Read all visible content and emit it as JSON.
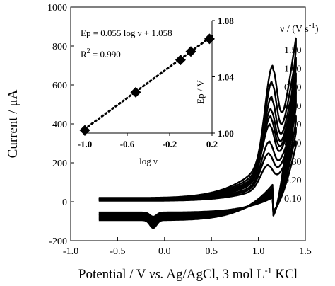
{
  "chart_data": [
    {
      "type": "line",
      "xlabel_parts": [
        "Potential / V ",
        "vs.",
        " Ag/AgCl, 3 mol L",
        "-1",
        " KCl"
      ],
      "ylabel": "Current / μA",
      "xlim": [
        -1.0,
        1.5
      ],
      "ylim": [
        -200,
        1000
      ],
      "xticks": [
        -1.0,
        -0.5,
        0.0,
        0.5,
        1.0,
        1.5
      ],
      "xtick_labels": [
        "-1.0",
        "-0.5",
        "0.0",
        "0.5",
        "1.0",
        "1.5"
      ],
      "yticks": [
        -200,
        0,
        200,
        400,
        600,
        800,
        1000
      ],
      "ytick_labels": [
        "-200",
        "0",
        "200",
        "400",
        "600",
        "800",
        "1000"
      ],
      "legend_title_parts": [
        "ν / (V s",
        "-1",
        ")"
      ],
      "legend_placement": "right",
      "grid": false,
      "series": [
        {
          "name": "0.10",
          "scan_rate": 0.1,
          "peak_current": 190,
          "turn_current": 310
        },
        {
          "name": "0.20",
          "scan_rate": 0.2,
          "peak_current": 250,
          "turn_current": 380
        },
        {
          "name": "0.30",
          "scan_rate": 0.3,
          "peak_current": 310,
          "turn_current": 440
        },
        {
          "name": "0.50",
          "scan_rate": 0.5,
          "peak_current": 400,
          "turn_current": 520
        },
        {
          "name": "0.60",
          "scan_rate": 0.6,
          "peak_current": 440,
          "turn_current": 560
        },
        {
          "name": "0.70",
          "scan_rate": 0.7,
          "peak_current": 480,
          "turn_current": 600
        },
        {
          "name": "0.80",
          "scan_rate": 0.8,
          "peak_current": 540,
          "turn_current": 660
        },
        {
          "name": "1.00",
          "scan_rate": 1.0,
          "peak_current": 620,
          "turn_current": 740
        },
        {
          "name": "1.50",
          "scan_rate": 1.5,
          "peak_current": 700,
          "turn_current": 840
        }
      ]
    },
    {
      "type": "scatter",
      "xlabel": "log ν",
      "ylabel": "Ep / V",
      "xlim": [
        -1.0,
        0.2
      ],
      "ylim": [
        1.0,
        1.08
      ],
      "xticks": [
        -1.0,
        -0.6,
        -0.2,
        0.2
      ],
      "xtick_labels": [
        "-1.0",
        "-0.6",
        "-0.2",
        "0.2"
      ],
      "yticks": [
        1.0,
        1.04,
        1.08
      ],
      "ytick_labels": [
        "1.00",
        "1.04",
        "1.08"
      ],
      "equation": "Ep = 0.055 log ν + 1.058",
      "r2_label": "R",
      "r2_exp": "2",
      "r2_value": " = 0.990",
      "fit": {
        "slope": 0.055,
        "intercept": 1.058
      },
      "points": [
        {
          "x": -1.0,
          "y": 1.002
        },
        {
          "x": -0.52,
          "y": 1.029
        },
        {
          "x": -0.097,
          "y": 1.052
        },
        {
          "x": 0.0,
          "y": 1.058
        },
        {
          "x": 0.176,
          "y": 1.067
        }
      ]
    }
  ]
}
